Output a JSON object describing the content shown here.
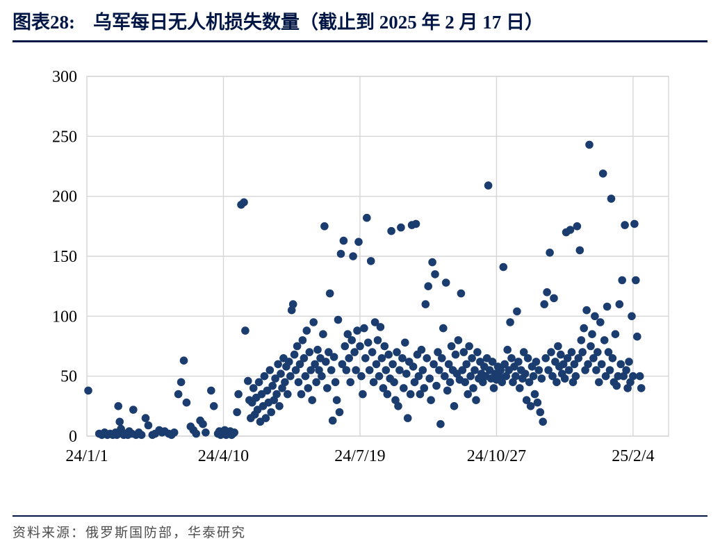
{
  "header": {
    "label": "图表28:",
    "title": "乌军每日无人机损失数量（截止到 2025 年 2 月 17 日）"
  },
  "footer": {
    "source": "资料来源：俄罗斯国防部，华泰研究"
  },
  "theme": {
    "navy": "#001746",
    "dot_color": "#1B3C6E",
    "grid_color": "#D6D6D6",
    "axis_text_color": "#000000",
    "source_text_color": "#4D4D4D"
  },
  "chart_data": {
    "type": "scatter",
    "title": "乌军每日无人机损失数量（截止到 2025 年 2 月 17 日）",
    "xlabel": "",
    "ylabel": "",
    "grid": true,
    "legend": "none",
    "x_unit": "days since 24/1/1",
    "xlim": [
      0,
      426
    ],
    "ylim": [
      0,
      300
    ],
    "y_ticks": [
      0,
      50,
      100,
      150,
      200,
      250,
      300
    ],
    "x_ticks": [
      {
        "pos": 0,
        "label": "24/1/1"
      },
      {
        "pos": 100,
        "label": "24/4/10"
      },
      {
        "pos": 200,
        "label": "24/7/19"
      },
      {
        "pos": 300,
        "label": "24/10/27"
      },
      {
        "pos": 400,
        "label": "25/2/4"
      }
    ],
    "points": [
      [
        1,
        38
      ],
      [
        9,
        2
      ],
      [
        11,
        1
      ],
      [
        13,
        3
      ],
      [
        15,
        1
      ],
      [
        17,
        2
      ],
      [
        19,
        1
      ],
      [
        21,
        3
      ],
      [
        22,
        1
      ],
      [
        23,
        25
      ],
      [
        24,
        12
      ],
      [
        25,
        6
      ],
      [
        26,
        3
      ],
      [
        27,
        1
      ],
      [
        28,
        2
      ],
      [
        30,
        1
      ],
      [
        31,
        4
      ],
      [
        33,
        2
      ],
      [
        34,
        22
      ],
      [
        36,
        1
      ],
      [
        38,
        3
      ],
      [
        40,
        1
      ],
      [
        43,
        15
      ],
      [
        45,
        9
      ],
      [
        48,
        1
      ],
      [
        50,
        2
      ],
      [
        53,
        5
      ],
      [
        55,
        3
      ],
      [
        57,
        4
      ],
      [
        60,
        2
      ],
      [
        62,
        1
      ],
      [
        64,
        3
      ],
      [
        67,
        35
      ],
      [
        69,
        45
      ],
      [
        71,
        63
      ],
      [
        73,
        28
      ],
      [
        76,
        8
      ],
      [
        78,
        5
      ],
      [
        80,
        2
      ],
      [
        83,
        13
      ],
      [
        85,
        10
      ],
      [
        87,
        3
      ],
      [
        91,
        38
      ],
      [
        93,
        25
      ],
      [
        96,
        2
      ],
      [
        97,
        4
      ],
      [
        98,
        1
      ],
      [
        99,
        3
      ],
      [
        100,
        2
      ],
      [
        101,
        5
      ],
      [
        102,
        1
      ],
      [
        103,
        3
      ],
      [
        104,
        2
      ],
      [
        105,
        4
      ],
      [
        106,
        1
      ],
      [
        107,
        2
      ],
      [
        108,
        3
      ],
      [
        110,
        20
      ],
      [
        111,
        35
      ],
      [
        113,
        193
      ],
      [
        115,
        195
      ],
      [
        116,
        88
      ],
      [
        118,
        46
      ],
      [
        119,
        30
      ],
      [
        120,
        15
      ],
      [
        121,
        28
      ],
      [
        122,
        40
      ],
      [
        123,
        18
      ],
      [
        124,
        32
      ],
      [
        125,
        22
      ],
      [
        126,
        45
      ],
      [
        127,
        12
      ],
      [
        128,
        35
      ],
      [
        129,
        25
      ],
      [
        130,
        50
      ],
      [
        131,
        15
      ],
      [
        132,
        38
      ],
      [
        133,
        28
      ],
      [
        134,
        55
      ],
      [
        135,
        20
      ],
      [
        136,
        42
      ],
      [
        137,
        30
      ],
      [
        138,
        48
      ],
      [
        139,
        35
      ],
      [
        140,
        60
      ],
      [
        141,
        25
      ],
      [
        142,
        52
      ],
      [
        143,
        40
      ],
      [
        144,
        65
      ],
      [
        145,
        45
      ],
      [
        146,
        58
      ],
      [
        147,
        35
      ],
      [
        148,
        62
      ],
      [
        149,
        50
      ],
      [
        150,
        105
      ],
      [
        151,
        110
      ],
      [
        152,
        68
      ],
      [
        153,
        55
      ],
      [
        154,
        75
      ],
      [
        155,
        45
      ],
      [
        156,
        60
      ],
      [
        157,
        35
      ],
      [
        158,
        80
      ],
      [
        159,
        65
      ],
      [
        160,
        50
      ],
      [
        161,
        88
      ],
      [
        162,
        40
      ],
      [
        163,
        70
      ],
      [
        164,
        55
      ],
      [
        165,
        30
      ],
      [
        166,
        95
      ],
      [
        167,
        60
      ],
      [
        168,
        45
      ],
      [
        169,
        72
      ],
      [
        170,
        55
      ],
      [
        171,
        65
      ],
      [
        172,
        50
      ],
      [
        173,
        85
      ],
      [
        174,
        175
      ],
      [
        175,
        62
      ],
      [
        176,
        40
      ],
      [
        177,
        70
      ],
      [
        178,
        119
      ],
      [
        179,
        55
      ],
      [
        180,
        13
      ],
      [
        181,
        66
      ],
      [
        182,
        45
      ],
      [
        183,
        30
      ],
      [
        184,
        97
      ],
      [
        185,
        20
      ],
      [
        186,
        152
      ],
      [
        187,
        60
      ],
      [
        188,
        163
      ],
      [
        189,
        75
      ],
      [
        190,
        55
      ],
      [
        191,
        85
      ],
      [
        192,
        65
      ],
      [
        193,
        45
      ],
      [
        194,
        80
      ],
      [
        195,
        150
      ],
      [
        196,
        70
      ],
      [
        197,
        55
      ],
      [
        198,
        88
      ],
      [
        199,
        162
      ],
      [
        200,
        75
      ],
      [
        201,
        50
      ],
      [
        202,
        35
      ],
      [
        203,
        90
      ],
      [
        204,
        65
      ],
      [
        205,
        182
      ],
      [
        206,
        78
      ],
      [
        207,
        55
      ],
      [
        208,
        146
      ],
      [
        209,
        70
      ],
      [
        210,
        45
      ],
      [
        211,
        95
      ],
      [
        212,
        60
      ],
      [
        213,
        80
      ],
      [
        214,
        50
      ],
      [
        215,
        91
      ],
      [
        216,
        65
      ],
      [
        217,
        40
      ],
      [
        218,
        75
      ],
      [
        219,
        55
      ],
      [
        220,
        35
      ],
      [
        221,
        68
      ],
      [
        222,
        48
      ],
      [
        223,
        171
      ],
      [
        224,
        60
      ],
      [
        225,
        45
      ],
      [
        226,
        30
      ],
      [
        227,
        70
      ],
      [
        228,
        25
      ],
      [
        229,
        55
      ],
      [
        230,
        174
      ],
      [
        231,
        65
      ],
      [
        232,
        40
      ],
      [
        233,
        78
      ],
      [
        234,
        52
      ],
      [
        235,
        15
      ],
      [
        236,
        62
      ],
      [
        237,
        35
      ],
      [
        238,
        176
      ],
      [
        239,
        58
      ],
      [
        240,
        45
      ],
      [
        241,
        177
      ],
      [
        242,
        68
      ],
      [
        243,
        50
      ],
      [
        244,
        35
      ],
      [
        245,
        72
      ],
      [
        246,
        55
      ],
      [
        247,
        40
      ],
      [
        248,
        110
      ],
      [
        249,
        65
      ],
      [
        250,
        125
      ],
      [
        251,
        48
      ],
      [
        252,
        30
      ],
      [
        253,
        145
      ],
      [
        254,
        60
      ],
      [
        255,
        135
      ],
      [
        256,
        42
      ],
      [
        257,
        70
      ],
      [
        258,
        55
      ],
      [
        259,
        10
      ],
      [
        260,
        65
      ],
      [
        261,
        90
      ],
      [
        262,
        50
      ],
      [
        263,
        128
      ],
      [
        264,
        38
      ],
      [
        265,
        60
      ],
      [
        266,
        45
      ],
      [
        267,
        75
      ],
      [
        268,
        55
      ],
      [
        269,
        25
      ],
      [
        270,
        68
      ],
      [
        271,
        52
      ],
      [
        272,
        80
      ],
      [
        273,
        47
      ],
      [
        274,
        119
      ],
      [
        275,
        55
      ],
      [
        276,
        70
      ],
      [
        277,
        45
      ],
      [
        278,
        60
      ],
      [
        279,
        35
      ],
      [
        280,
        75
      ],
      [
        281,
        50
      ],
      [
        282,
        65
      ],
      [
        283,
        40
      ],
      [
        284,
        55
      ],
      [
        285,
        30
      ],
      [
        286,
        70
      ],
      [
        287,
        48
      ],
      [
        288,
        62
      ],
      [
        289,
        52
      ],
      [
        290,
        45
      ],
      [
        291,
        58
      ],
      [
        292,
        50
      ],
      [
        293,
        65
      ],
      [
        294,
        209
      ],
      [
        295,
        55
      ],
      [
        296,
        48
      ],
      [
        297,
        62
      ],
      [
        298,
        40
      ],
      [
        299,
        52
      ],
      [
        300,
        47
      ],
      [
        301,
        58
      ],
      [
        302,
        50
      ],
      [
        303,
        55
      ],
      [
        304,
        45
      ],
      [
        305,
        141
      ],
      [
        306,
        60
      ],
      [
        307,
        50
      ],
      [
        308,
        72
      ],
      [
        309,
        55
      ],
      [
        310,
        95
      ],
      [
        311,
        65
      ],
      [
        312,
        45
      ],
      [
        313,
        58
      ],
      [
        314,
        50
      ],
      [
        315,
        104
      ],
      [
        316,
        62
      ],
      [
        317,
        40
      ],
      [
        318,
        55
      ],
      [
        319,
        48
      ],
      [
        320,
        70
      ],
      [
        321,
        52
      ],
      [
        322,
        30
      ],
      [
        323,
        65
      ],
      [
        324,
        45
      ],
      [
        325,
        25
      ],
      [
        326,
        58
      ],
      [
        327,
        50
      ],
      [
        328,
        35
      ],
      [
        329,
        62
      ],
      [
        330,
        28
      ],
      [
        331,
        55
      ],
      [
        332,
        20
      ],
      [
        333,
        48
      ],
      [
        334,
        12
      ],
      [
        335,
        110
      ],
      [
        336,
        65
      ],
      [
        337,
        120
      ],
      [
        338,
        55
      ],
      [
        339,
        153
      ],
      [
        340,
        70
      ],
      [
        341,
        50
      ],
      [
        342,
        115
      ],
      [
        343,
        62
      ],
      [
        344,
        45
      ],
      [
        345,
        75
      ],
      [
        346,
        58
      ],
      [
        347,
        68
      ],
      [
        348,
        52
      ],
      [
        349,
        60
      ],
      [
        350,
        48
      ],
      [
        351,
        170
      ],
      [
        352,
        65
      ],
      [
        353,
        55
      ],
      [
        354,
        172
      ],
      [
        355,
        70
      ],
      [
        356,
        45
      ],
      [
        357,
        60
      ],
      [
        358,
        50
      ],
      [
        359,
        175
      ],
      [
        360,
        65
      ],
      [
        361,
        155
      ],
      [
        362,
        80
      ],
      [
        363,
        70
      ],
      [
        364,
        90
      ],
      [
        365,
        55
      ],
      [
        366,
        105
      ],
      [
        367,
        60
      ],
      [
        368,
        243
      ],
      [
        369,
        75
      ],
      [
        370,
        85
      ],
      [
        371,
        65
      ],
      [
        372,
        100
      ],
      [
        373,
        55
      ],
      [
        374,
        70
      ],
      [
        375,
        45
      ],
      [
        376,
        95
      ],
      [
        377,
        60
      ],
      [
        378,
        219
      ],
      [
        379,
        80
      ],
      [
        380,
        50
      ],
      [
        381,
        108
      ],
      [
        382,
        70
      ],
      [
        383,
        55
      ],
      [
        384,
        198
      ],
      [
        385,
        65
      ],
      [
        386,
        45
      ],
      [
        387,
        85
      ],
      [
        388,
        42
      ],
      [
        389,
        50
      ],
      [
        390,
        110
      ],
      [
        391,
        60
      ],
      [
        392,
        130
      ],
      [
        393,
        50
      ],
      [
        394,
        176
      ],
      [
        395,
        55
      ],
      [
        396,
        40
      ],
      [
        397,
        62
      ],
      [
        398,
        45
      ],
      [
        399,
        100
      ],
      [
        400,
        50
      ],
      [
        401,
        177
      ],
      [
        402,
        130
      ],
      [
        403,
        83
      ],
      [
        405,
        50
      ],
      [
        406,
        40
      ]
    ]
  }
}
